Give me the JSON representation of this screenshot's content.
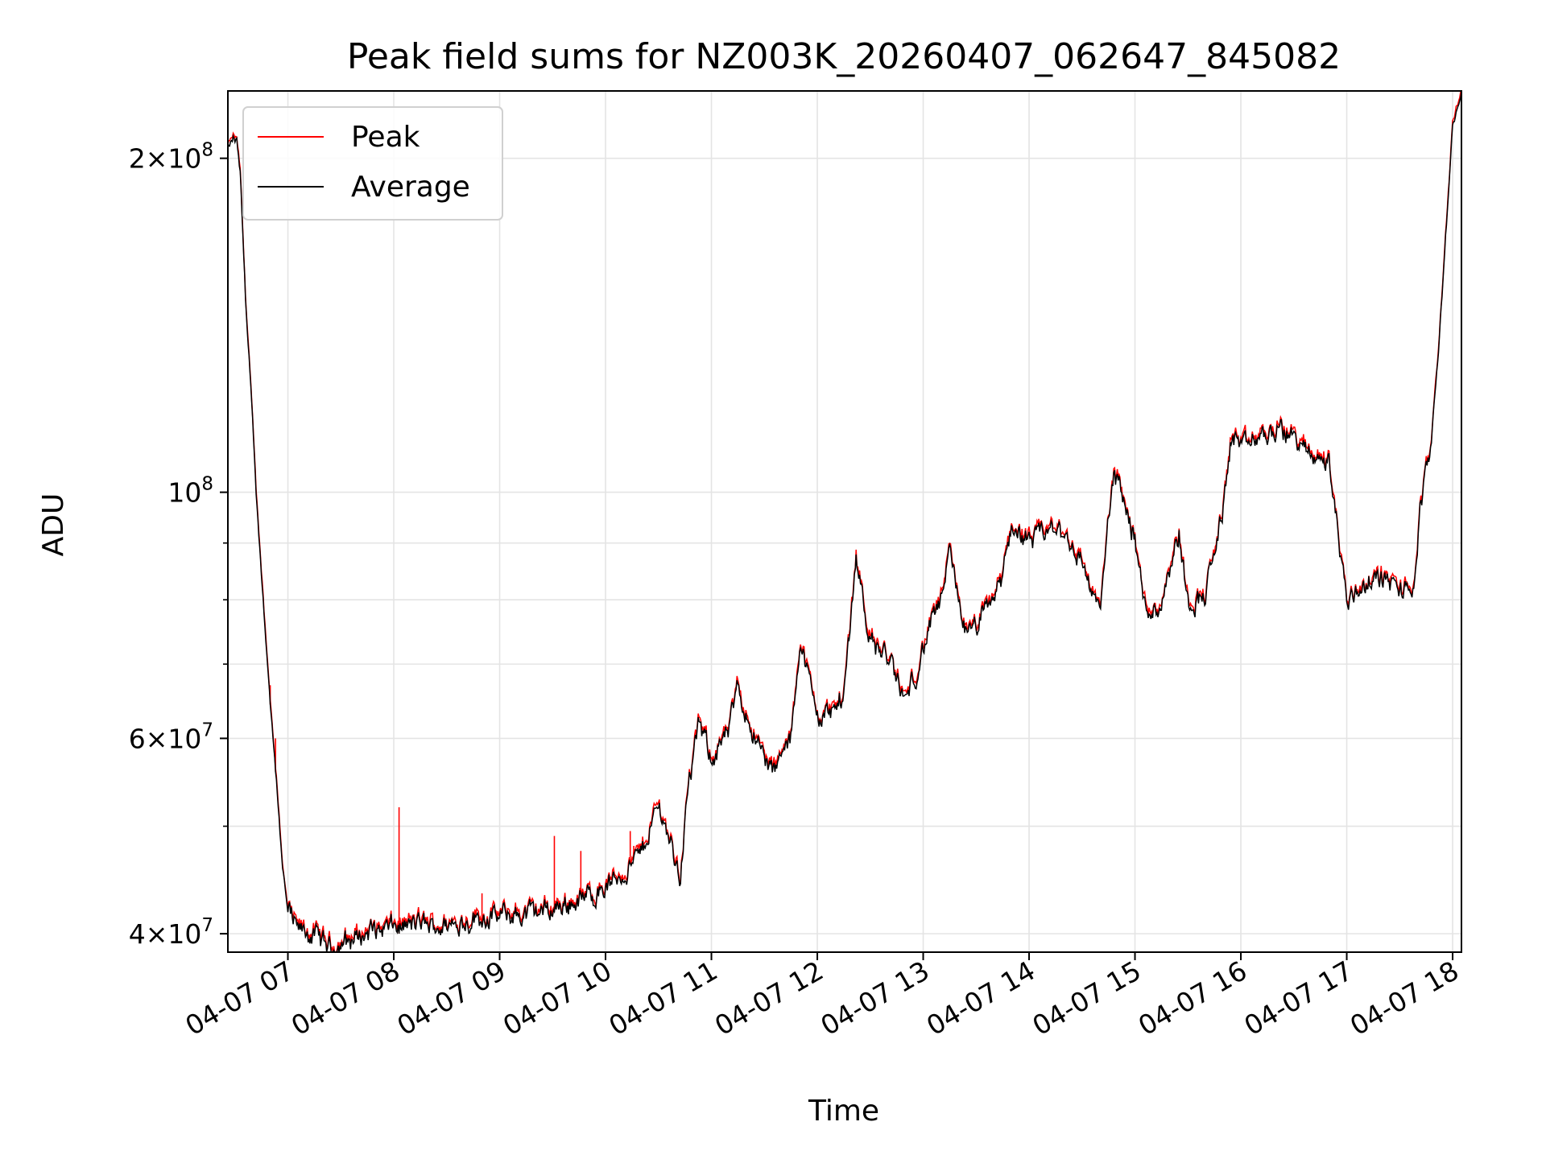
{
  "chart_data": {
    "type": "line",
    "title": "Peak field sums for NZ003K_20260407_062647_845082",
    "xlabel": "Time",
    "ylabel": "ADU",
    "yscale": "log",
    "ylim": [
      38500000,
      230000000
    ],
    "xlim": [
      "2026-04-07 06:26",
      "2026-04-07 18:05"
    ],
    "x_tick_labels": [
      "04-07 07",
      "04-07 08",
      "04-07 09",
      "04-07 10",
      "04-07 11",
      "04-07 12",
      "04-07 13",
      "04-07 14",
      "04-07 15",
      "04-07 16",
      "04-07 17",
      "04-07 18"
    ],
    "y_major_ticks": [
      {
        "value": 40000000,
        "mant": "4",
        "exp": "7"
      },
      {
        "value": 60000000,
        "mant": "6",
        "exp": "7"
      },
      {
        "value": 100000000,
        "mant": "",
        "exp": "8"
      },
      {
        "value": 200000000,
        "mant": "2",
        "exp": "8"
      }
    ],
    "y_minor_ticks": [
      50000000,
      70000000,
      80000000,
      90000000
    ],
    "grid": true,
    "legend_position": "top-left",
    "colors": {
      "Peak": "#ff0000",
      "Average": "#000000",
      "grid": "#e4e4e4"
    },
    "spikes": [
      {
        "x": "2026-04-07 08:03",
        "y": 52000000
      },
      {
        "x": "2026-04-07 08:50",
        "y": 43500000
      },
      {
        "x": "2026-04-07 09:31",
        "y": 49000000
      },
      {
        "x": "2026-04-07 09:46",
        "y": 47500000
      },
      {
        "x": "2026-04-07 10:14",
        "y": 49500000
      },
      {
        "x": "2026-04-07 10:16",
        "y": 48000000
      },
      {
        "x": "2026-04-07 06:50",
        "y": 67000000
      },
      {
        "x": "2026-04-07 06:53",
        "y": 60000000
      }
    ],
    "series": [
      {
        "name": "Peak",
        "anchors": [
          [
            "2026-04-07 06:26",
            205000000
          ],
          [
            "2026-04-07 06:29",
            209000000
          ],
          [
            "2026-04-07 06:31",
            208000000
          ],
          [
            "2026-04-07 06:33",
            195000000
          ],
          [
            "2026-04-07 06:36",
            150000000
          ],
          [
            "2026-04-07 06:39",
            125000000
          ],
          [
            "2026-04-07 06:42",
            100000000
          ],
          [
            "2026-04-07 06:45",
            85000000
          ],
          [
            "2026-04-07 06:48",
            72000000
          ],
          [
            "2026-04-07 06:51",
            62000000
          ],
          [
            "2026-04-07 06:54",
            54000000
          ],
          [
            "2026-04-07 06:57",
            46000000
          ],
          [
            "2026-04-07 07:00",
            42000000
          ],
          [
            "2026-04-07 07:05",
            40500000
          ],
          [
            "2026-04-07 07:15",
            40000000
          ],
          [
            "2026-04-07 07:25",
            39000000
          ],
          [
            "2026-04-07 07:35",
            39600000
          ],
          [
            "2026-04-07 07:45",
            40300000
          ],
          [
            "2026-04-07 08:00",
            40700000
          ],
          [
            "2026-04-07 08:15",
            41000000
          ],
          [
            "2026-04-07 08:30",
            40700000
          ],
          [
            "2026-04-07 08:45",
            41500000
          ],
          [
            "2026-04-07 09:00",
            41600000
          ],
          [
            "2026-04-07 09:15",
            41800000
          ],
          [
            "2026-04-07 09:30",
            42300000
          ],
          [
            "2026-04-07 09:45",
            43000000
          ],
          [
            "2026-04-07 10:00",
            44200000
          ],
          [
            "2026-04-07 10:10",
            45500000
          ],
          [
            "2026-04-07 10:20",
            47500000
          ],
          [
            "2026-04-07 10:30",
            52500000
          ],
          [
            "2026-04-07 10:38",
            48000000
          ],
          [
            "2026-04-07 10:42",
            45000000
          ],
          [
            "2026-04-07 10:47",
            54500000
          ],
          [
            "2026-04-07 10:53",
            62000000
          ],
          [
            "2026-04-07 11:00",
            58000000
          ],
          [
            "2026-04-07 11:10",
            61000000
          ],
          [
            "2026-04-07 11:15",
            67000000
          ],
          [
            "2026-04-07 11:25",
            60000000
          ],
          [
            "2026-04-07 11:35",
            56000000
          ],
          [
            "2026-04-07 11:45",
            60000000
          ],
          [
            "2026-04-07 11:50",
            74000000
          ],
          [
            "2026-04-07 12:00",
            63000000
          ],
          [
            "2026-04-07 12:10",
            64000000
          ],
          [
            "2026-04-07 12:15",
            66000000
          ],
          [
            "2026-04-07 12:22",
            88000000
          ],
          [
            "2026-04-07 12:30",
            74000000
          ],
          [
            "2026-04-07 12:40",
            71000000
          ],
          [
            "2026-04-07 12:50",
            65000000
          ],
          [
            "2026-04-07 12:57",
            70000000
          ],
          [
            "2026-04-07 13:05",
            77000000
          ],
          [
            "2026-04-07 13:10",
            80000000
          ],
          [
            "2026-04-07 13:15",
            88000000
          ],
          [
            "2026-04-07 13:25",
            74000000
          ],
          [
            "2026-04-07 13:35",
            78000000
          ],
          [
            "2026-04-07 13:45",
            84000000
          ],
          [
            "2026-04-07 13:50",
            94000000
          ],
          [
            "2026-04-07 14:00",
            90000000
          ],
          [
            "2026-04-07 14:10",
            93000000
          ],
          [
            "2026-04-07 14:20",
            92000000
          ],
          [
            "2026-04-07 14:30",
            87000000
          ],
          [
            "2026-04-07 14:40",
            78000000
          ],
          [
            "2026-04-07 14:48",
            105000000
          ],
          [
            "2026-04-07 14:55",
            97000000
          ],
          [
            "2026-04-07 15:00",
            91000000
          ],
          [
            "2026-04-07 15:05",
            80000000
          ],
          [
            "2026-04-07 15:13",
            78000000
          ],
          [
            "2026-04-07 15:20",
            87000000
          ],
          [
            "2026-04-07 15:25",
            92000000
          ],
          [
            "2026-04-07 15:30",
            80000000
          ],
          [
            "2026-04-07 15:40",
            81000000
          ],
          [
            "2026-04-07 15:50",
            97000000
          ],
          [
            "2026-04-07 15:55",
            114000000
          ],
          [
            "2026-04-07 16:00",
            110000000
          ],
          [
            "2026-04-07 16:10",
            112000000
          ],
          [
            "2026-04-07 16:20",
            114000000
          ],
          [
            "2026-04-07 16:30",
            113000000
          ],
          [
            "2026-04-07 16:40",
            108000000
          ],
          [
            "2026-04-07 16:50",
            107000000
          ],
          [
            "2026-04-07 17:00",
            80000000
          ],
          [
            "2026-04-07 17:10",
            83000000
          ],
          [
            "2026-04-07 17:20",
            84000000
          ],
          [
            "2026-04-07 17:30",
            82000000
          ],
          [
            "2026-04-07 17:38",
            82000000
          ],
          [
            "2026-04-07 17:42",
            98000000
          ],
          [
            "2026-04-07 17:47",
            108000000
          ],
          [
            "2026-04-07 17:52",
            135000000
          ],
          [
            "2026-04-07 17:56",
            170000000
          ],
          [
            "2026-04-07 18:00",
            215000000
          ],
          [
            "2026-04-07 18:05",
            230000000
          ]
        ]
      },
      {
        "name": "Average",
        "follows": "Peak"
      }
    ]
  }
}
